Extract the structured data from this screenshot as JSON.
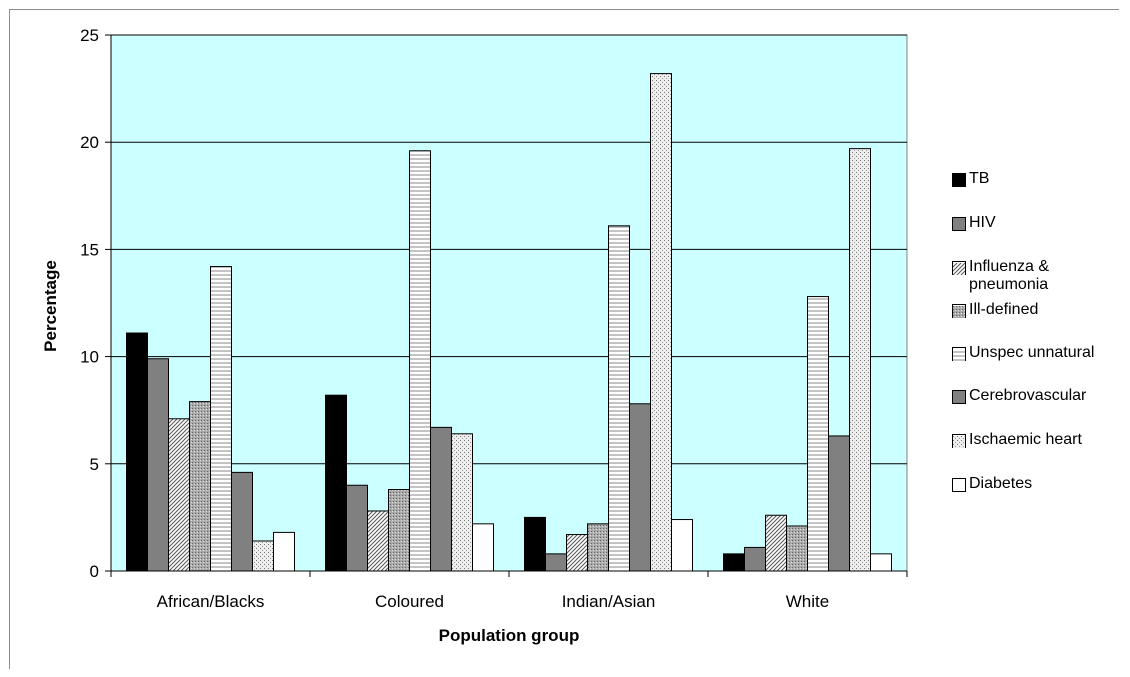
{
  "chart_data": {
    "type": "bar",
    "title": "",
    "xlabel": "Population group",
    "ylabel": "Percentage",
    "ylim": [
      0,
      25
    ],
    "yticks": [
      0,
      5,
      10,
      15,
      20,
      25
    ],
    "grid": true,
    "plot_background": "#ccffff",
    "legend_position": "right",
    "categories": [
      "African/Blacks",
      "Coloured",
      "Indian/Asian",
      "White"
    ],
    "series": [
      {
        "name": "TB",
        "values": [
          11.1,
          8.2,
          2.5,
          0.8
        ],
        "pattern": "solid-black"
      },
      {
        "name": "HIV",
        "values": [
          9.9,
          4.0,
          0.8,
          1.1
        ],
        "pattern": "solid-gray"
      },
      {
        "name": "Influenza & pneumonia",
        "values": [
          7.1,
          2.8,
          1.7,
          2.6
        ],
        "pattern": "diagonal"
      },
      {
        "name": "Ill-defined",
        "values": [
          7.9,
          3.8,
          2.2,
          2.1
        ],
        "pattern": "dots-gray"
      },
      {
        "name": "Unspec unnatural",
        "values": [
          14.2,
          19.6,
          16.1,
          12.8
        ],
        "pattern": "horizontal-lines"
      },
      {
        "name": "Cerebrovascular",
        "values": [
          4.6,
          6.7,
          7.8,
          6.3
        ],
        "pattern": "solid-gray"
      },
      {
        "name": "Ischaemic heart",
        "values": [
          1.4,
          6.4,
          23.2,
          19.7
        ],
        "pattern": "dots-light"
      },
      {
        "name": "Diabetes",
        "values": [
          1.8,
          2.2,
          2.4,
          0.8
        ],
        "pattern": "white"
      }
    ]
  }
}
